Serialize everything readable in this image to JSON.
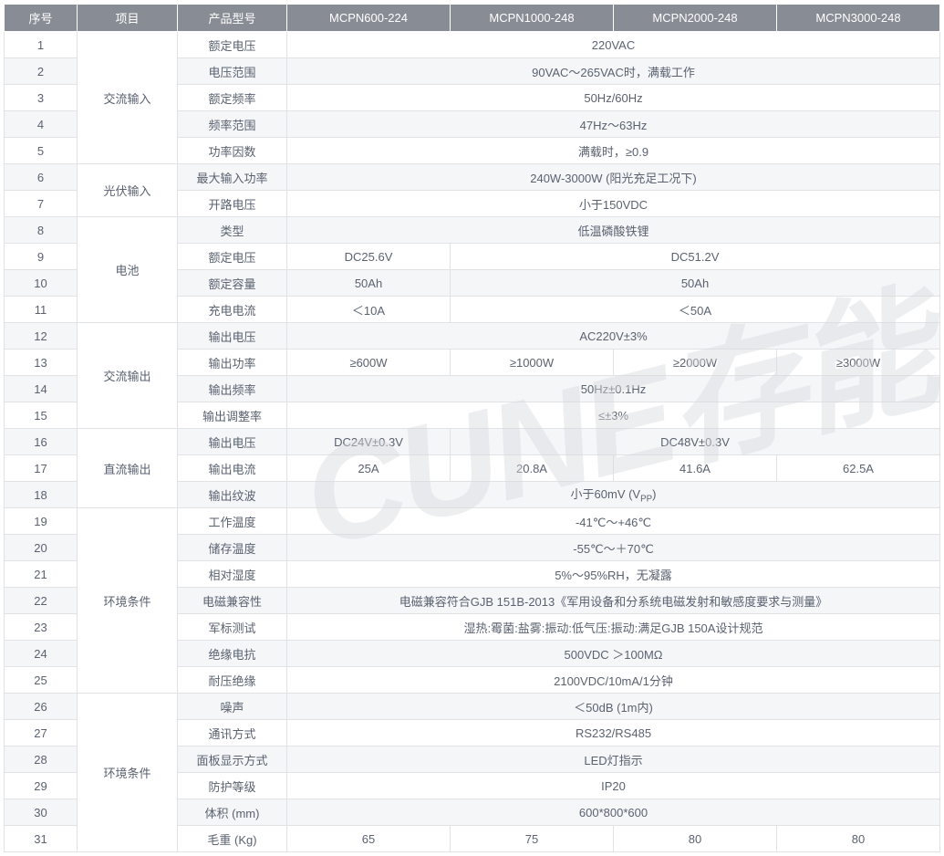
{
  "watermark_text": "CUNE存能",
  "colors": {
    "header_bg": "#888c95",
    "header_fg": "#ffffff",
    "row_alt_bg": "#f5f6f8",
    "border": "#e1e2e6",
    "text": "#5a6270",
    "watermark": "#d9dbde"
  },
  "headers": {
    "seq": "序号",
    "category": "项目",
    "param": "产品型号",
    "models": [
      "MCPN600-224",
      "MCPN1000-248",
      "MCPN2000-248",
      "MCPN3000-248"
    ]
  },
  "rows": [
    {
      "seq": "1",
      "category": "交流输入",
      "cat_rowspan": 5,
      "param": "额定电压",
      "cells": [
        {
          "span": 4,
          "text": "220VAC"
        }
      ]
    },
    {
      "seq": "2",
      "param": "电压范围",
      "cells": [
        {
          "span": 4,
          "text": "90VAC～265VAC时，满载工作"
        }
      ]
    },
    {
      "seq": "3",
      "param": "额定频率",
      "cells": [
        {
          "span": 4,
          "text": "50Hz/60Hz"
        }
      ]
    },
    {
      "seq": "4",
      "param": "频率范围",
      "cells": [
        {
          "span": 4,
          "text": "47Hz～63Hz"
        }
      ]
    },
    {
      "seq": "5",
      "param": "功率因数",
      "cells": [
        {
          "span": 4,
          "text": "满载时，≥0.9"
        }
      ]
    },
    {
      "seq": "6",
      "category": "光伏输入",
      "cat_rowspan": 2,
      "param": "最大输入功率",
      "cells": [
        {
          "span": 4,
          "text": "240W-3000W (阳光充足工况下)"
        }
      ]
    },
    {
      "seq": "7",
      "param": "开路电压",
      "cells": [
        {
          "span": 4,
          "text": "小于150VDC"
        }
      ]
    },
    {
      "seq": "8",
      "category": "电池",
      "cat_rowspan": 4,
      "param": "类型",
      "cells": [
        {
          "span": 4,
          "text": "低温磷酸铁锂"
        }
      ]
    },
    {
      "seq": "9",
      "param": "额定电压",
      "cells": [
        {
          "span": 1,
          "text": "DC25.6V"
        },
        {
          "span": 3,
          "text": "DC51.2V"
        }
      ]
    },
    {
      "seq": "10",
      "param": "额定容量",
      "cells": [
        {
          "span": 1,
          "text": "50Ah"
        },
        {
          "span": 3,
          "text": "50Ah"
        }
      ]
    },
    {
      "seq": "11",
      "param": "充电电流",
      "cells": [
        {
          "span": 1,
          "text": "＜10A"
        },
        {
          "span": 3,
          "text": "＜50A"
        }
      ]
    },
    {
      "seq": "12",
      "category": "交流输出",
      "cat_rowspan": 4,
      "param": "输出电压",
      "cells": [
        {
          "span": 4,
          "text": "AC220V±3%"
        }
      ]
    },
    {
      "seq": "13",
      "param": "输出功率",
      "cells": [
        {
          "span": 1,
          "text": "≥600W"
        },
        {
          "span": 1,
          "text": "≥1000W"
        },
        {
          "span": 1,
          "text": "≥2000W"
        },
        {
          "span": 1,
          "text": "≥3000W"
        }
      ]
    },
    {
      "seq": "14",
      "param": "输出频率",
      "cells": [
        {
          "span": 4,
          "text": "50Hz±0.1Hz"
        }
      ]
    },
    {
      "seq": "15",
      "param": "输出调整率",
      "cells": [
        {
          "span": 4,
          "text": "≤±3%"
        }
      ]
    },
    {
      "seq": "16",
      "category": "直流输出",
      "cat_rowspan": 3,
      "param": "输出电压",
      "cells": [
        {
          "span": 1,
          "text": "DC24V±0.3V"
        },
        {
          "span": 3,
          "text": "DC48V±0.3V"
        }
      ]
    },
    {
      "seq": "17",
      "param": "输出电流",
      "cells": [
        {
          "span": 1,
          "text": "25A"
        },
        {
          "span": 1,
          "text": "20.8A"
        },
        {
          "span": 1,
          "text": "41.6A"
        },
        {
          "span": 1,
          "text": "62.5A"
        }
      ]
    },
    {
      "seq": "18",
      "param": "输出纹波",
      "cells": [
        {
          "span": 4,
          "html": "小于60mV (V<sub>PP</sub>)"
        }
      ]
    },
    {
      "seq": "19",
      "category": "环境条件",
      "cat_rowspan": 7,
      "param": "工作温度",
      "cells": [
        {
          "span": 4,
          "text": "-41℃～+46℃"
        }
      ]
    },
    {
      "seq": "20",
      "param": "储存温度",
      "cells": [
        {
          "span": 4,
          "text": "-55℃～＋70℃"
        }
      ]
    },
    {
      "seq": "21",
      "param": "相对湿度",
      "cells": [
        {
          "span": 4,
          "text": "5%～95%RH，无凝露"
        }
      ]
    },
    {
      "seq": "22",
      "param": "电磁兼容性",
      "cells": [
        {
          "span": 4,
          "text": "电磁兼容符合GJB 151B-2013《军用设备和分系统电磁发射和敏感度要求与测量》"
        }
      ]
    },
    {
      "seq": "23",
      "param": "军标测试",
      "cells": [
        {
          "span": 4,
          "text": "湿热:霉菌:盐雾:振动:低气压:振动:满足GJB 150A设计规范"
        }
      ]
    },
    {
      "seq": "24",
      "param": "绝缘电抗",
      "cells": [
        {
          "span": 4,
          "text": "500VDC  ＞100MΩ"
        }
      ]
    },
    {
      "seq": "25",
      "param": "耐压绝缘",
      "cells": [
        {
          "span": 4,
          "text": "2100VDC/10mA/1分钟"
        }
      ]
    },
    {
      "seq": "26",
      "category": "环境条件",
      "cat_rowspan": 6,
      "param": "噪声",
      "cells": [
        {
          "span": 4,
          "text": "＜50dB (1m内)"
        }
      ]
    },
    {
      "seq": "27",
      "param": "通讯方式",
      "cells": [
        {
          "span": 4,
          "text": "RS232/RS485"
        }
      ]
    },
    {
      "seq": "28",
      "param": "面板显示方式",
      "cells": [
        {
          "span": 4,
          "text": "LED灯指示"
        }
      ]
    },
    {
      "seq": "29",
      "param": "防护等级",
      "cells": [
        {
          "span": 4,
          "text": "IP20"
        }
      ]
    },
    {
      "seq": "30",
      "param": "体积 (mm)",
      "cells": [
        {
          "span": 4,
          "text": "600*800*600"
        }
      ]
    },
    {
      "seq": "31",
      "param": "毛重 (Kg)",
      "cells": [
        {
          "span": 1,
          "text": "65"
        },
        {
          "span": 1,
          "text": "75"
        },
        {
          "span": 1,
          "text": "80"
        },
        {
          "span": 1,
          "text": "80"
        }
      ]
    }
  ]
}
